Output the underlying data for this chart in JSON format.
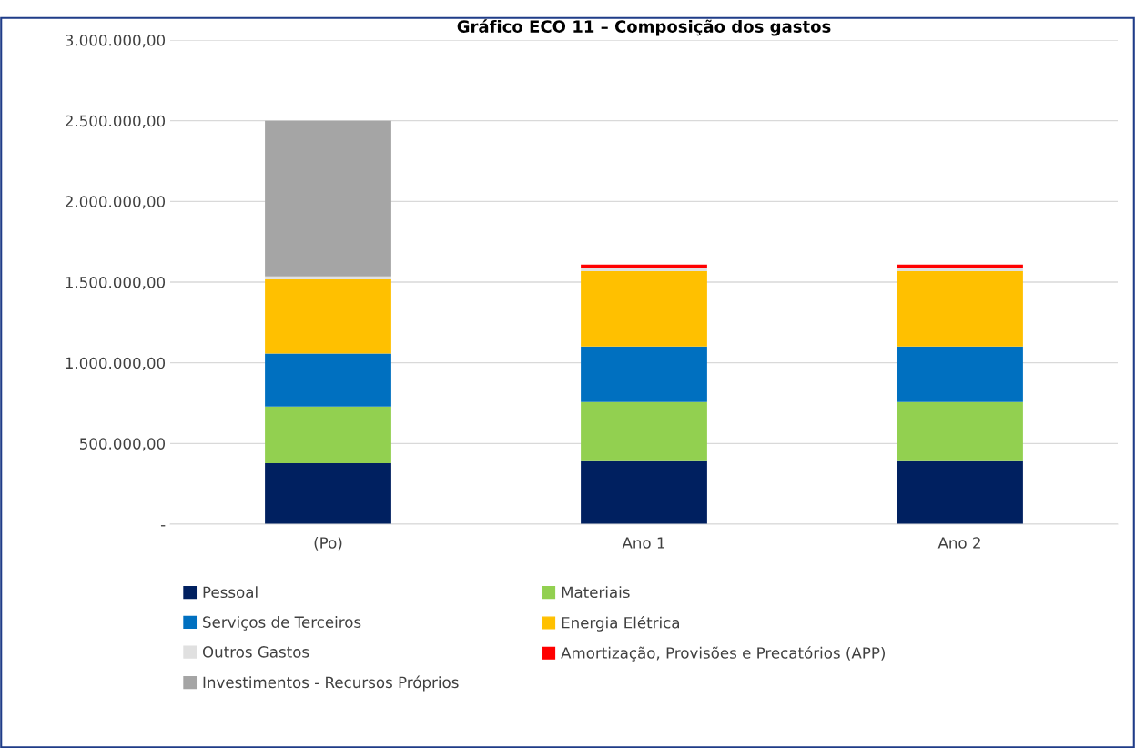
{
  "chart_data": {
    "type": "bar",
    "title": "Gráfico ECO 11 – Composição dos gastos",
    "stacked": true,
    "categories": [
      "(Po)",
      "Ano 1",
      "Ano 2"
    ],
    "series": [
      {
        "name": "Pessoal",
        "color": "#002060",
        "values": [
          378000,
          391000,
          391000
        ]
      },
      {
        "name": "Materiais",
        "color": "#92d050",
        "values": [
          351000,
          366000,
          366000
        ]
      },
      {
        "name": "Serviços de Terceiros",
        "color": "#0070c0",
        "values": [
          329000,
          344000,
          344000
        ]
      },
      {
        "name": "Energia Elétrica",
        "color": "#ffc000",
        "values": [
          459000,
          467000,
          467000
        ]
      },
      {
        "name": "Outros Gastos",
        "color": "#e0e0e0",
        "values": [
          18000,
          20000,
          20000
        ]
      },
      {
        "name": "Amortização, Provisões e Precatórios (APP)",
        "color": "#ff0000",
        "values": [
          0,
          21000,
          21000
        ]
      },
      {
        "name": "Investimentos - Recursos Próprios",
        "color": "#a5a5a5",
        "values": [
          965000,
          0,
          0
        ]
      }
    ],
    "ylim": [
      0,
      3000000
    ],
    "yticks": [
      {
        "value": 0,
        "label": "-"
      },
      {
        "value": 500000,
        "label": "500.000,00"
      },
      {
        "value": 1000000,
        "label": "1.000.000,00"
      },
      {
        "value": 1500000,
        "label": "1.500.000,00"
      },
      {
        "value": 2000000,
        "label": "2.000.000,00"
      },
      {
        "value": 2500000,
        "label": "2.500.000,00"
      },
      {
        "value": 3000000,
        "label": "3.000.000,00"
      }
    ],
    "grid": "y",
    "legend": "bottom"
  }
}
